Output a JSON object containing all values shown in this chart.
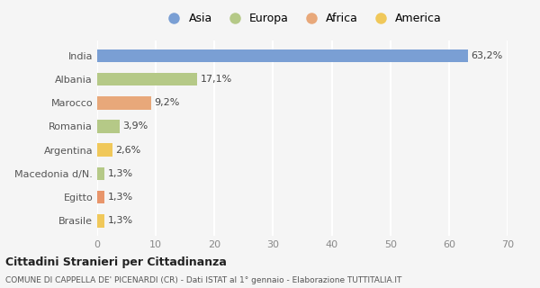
{
  "categories": [
    "Brasile",
    "Egitto",
    "Macedonia d/N.",
    "Argentina",
    "Romania",
    "Marocco",
    "Albania",
    "India"
  ],
  "values": [
    1.3,
    1.3,
    1.3,
    2.6,
    3.9,
    9.2,
    17.1,
    63.2
  ],
  "labels": [
    "1,3%",
    "1,3%",
    "1,3%",
    "2,6%",
    "3,9%",
    "9,2%",
    "17,1%",
    "63,2%"
  ],
  "colors": [
    "#f0c85a",
    "#e8956b",
    "#b5c987",
    "#f0c85a",
    "#b5c987",
    "#e8a87a",
    "#b5c987",
    "#7a9fd4"
  ],
  "legend_labels": [
    "Asia",
    "Europa",
    "Africa",
    "America"
  ],
  "legend_colors": [
    "#7a9fd4",
    "#b5c987",
    "#e8a87a",
    "#f0c85a"
  ],
  "xlim": [
    0,
    70
  ],
  "xticks": [
    0,
    10,
    20,
    30,
    40,
    50,
    60,
    70
  ],
  "title_main": "Cittadini Stranieri per Cittadinanza",
  "title_sub": "COMUNE DI CAPPELLA DE' PICENARDI (CR) - Dati ISTAT al 1° gennaio - Elaborazione TUTTITALIA.IT",
  "bg_color": "#f5f5f5",
  "grid_color": "#ffffff",
  "bar_height": 0.55,
  "label_fontsize": 8,
  "tick_fontsize": 8,
  "legend_fontsize": 9
}
